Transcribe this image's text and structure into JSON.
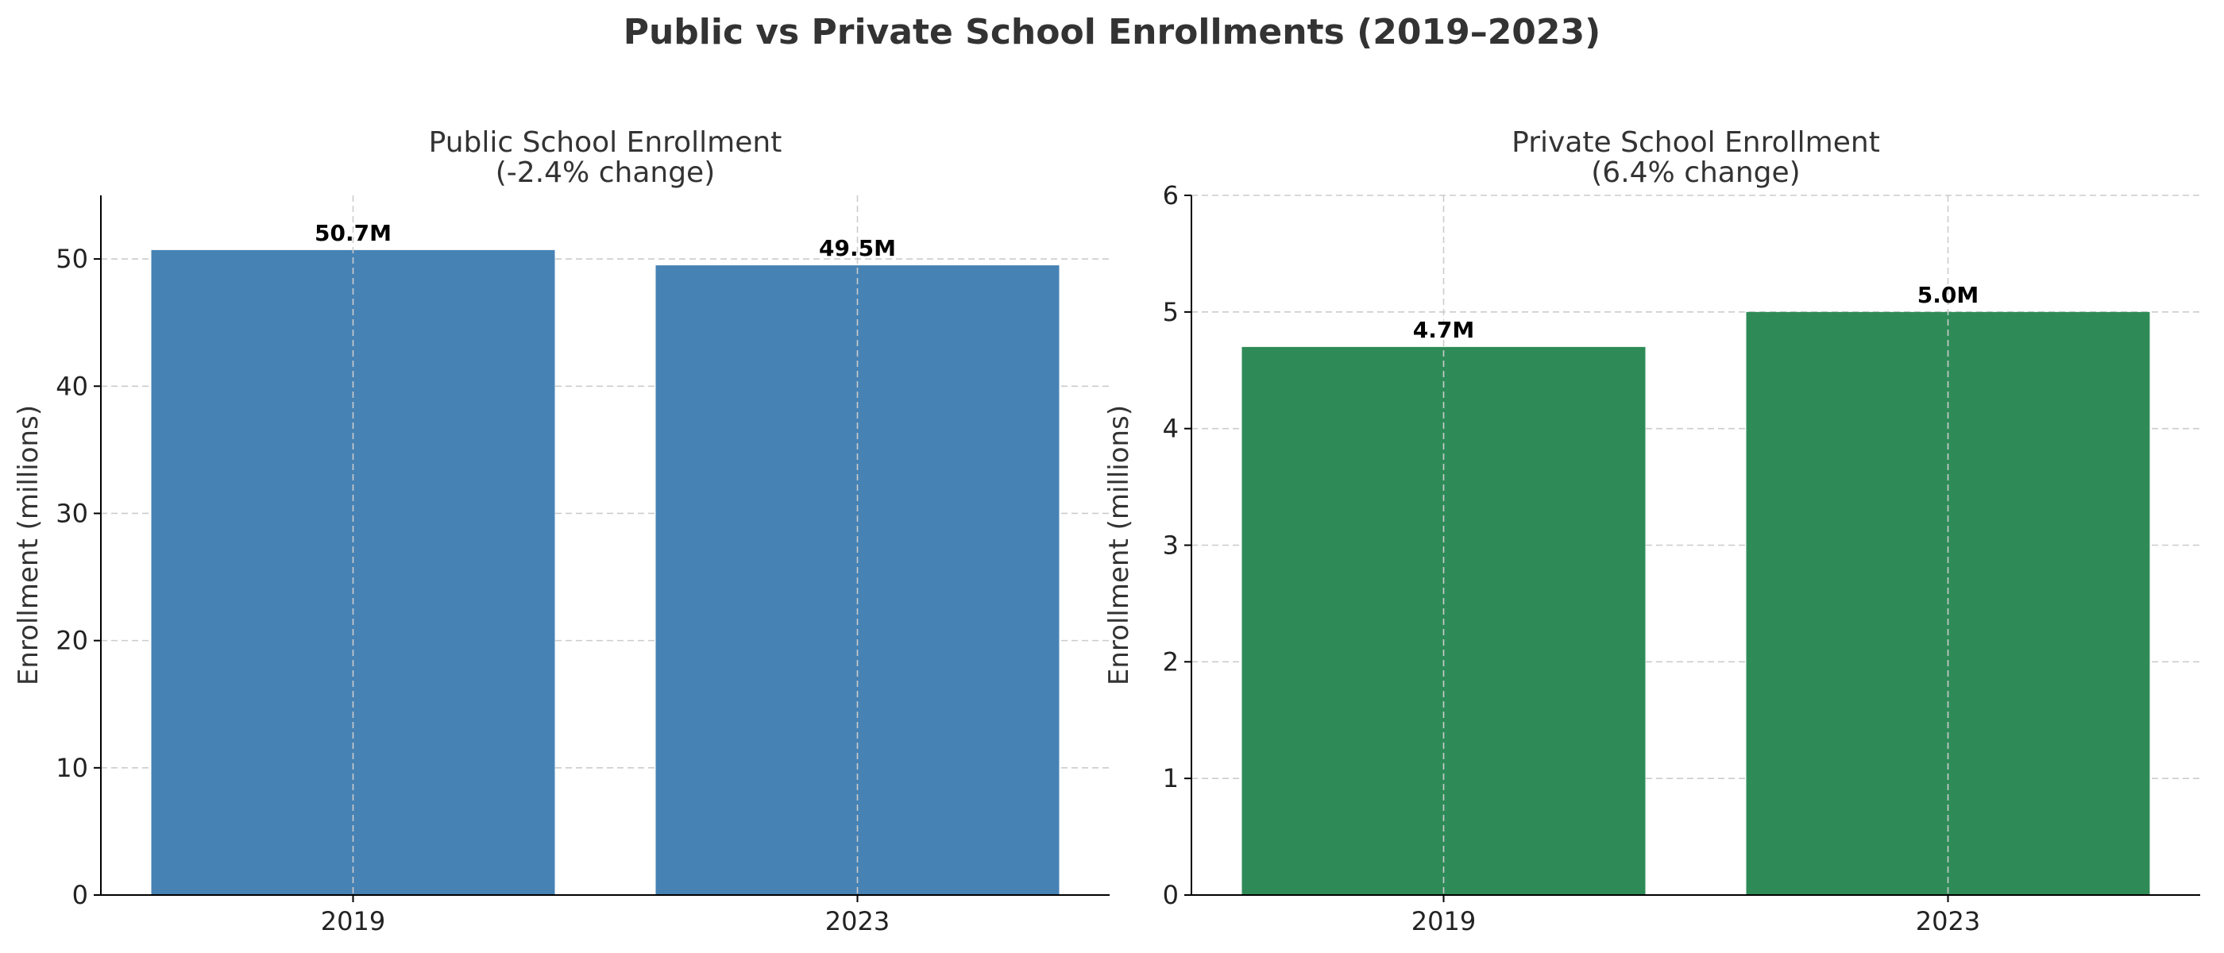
{
  "figure": {
    "title": "Public vs Private School Enrollments (2019–2023)"
  },
  "chart_data": [
    {
      "type": "bar",
      "title": "Public School Enrollment",
      "subtitle": "(-2.4% change)",
      "xlabel": "",
      "ylabel": "Enrollment (millions)",
      "categories": [
        "2019",
        "2023"
      ],
      "values": [
        50.7,
        49.5
      ],
      "data_labels": [
        "50.7M",
        "49.5M"
      ],
      "ylim": [
        0,
        55
      ],
      "yticks": [
        0,
        10,
        20,
        30,
        40,
        50
      ],
      "color": "#4682b4",
      "grid": true
    },
    {
      "type": "bar",
      "title": "Private School Enrollment",
      "subtitle": "(6.4% change)",
      "xlabel": "",
      "ylabel": "Enrollment (millions)",
      "categories": [
        "2019",
        "2023"
      ],
      "values": [
        4.7,
        5.0
      ],
      "data_labels": [
        "4.7M",
        "5.0M"
      ],
      "ylim": [
        0,
        6
      ],
      "yticks": [
        0,
        1,
        2,
        3,
        4,
        5,
        6
      ],
      "color": "#2e8b57",
      "grid": true
    }
  ]
}
